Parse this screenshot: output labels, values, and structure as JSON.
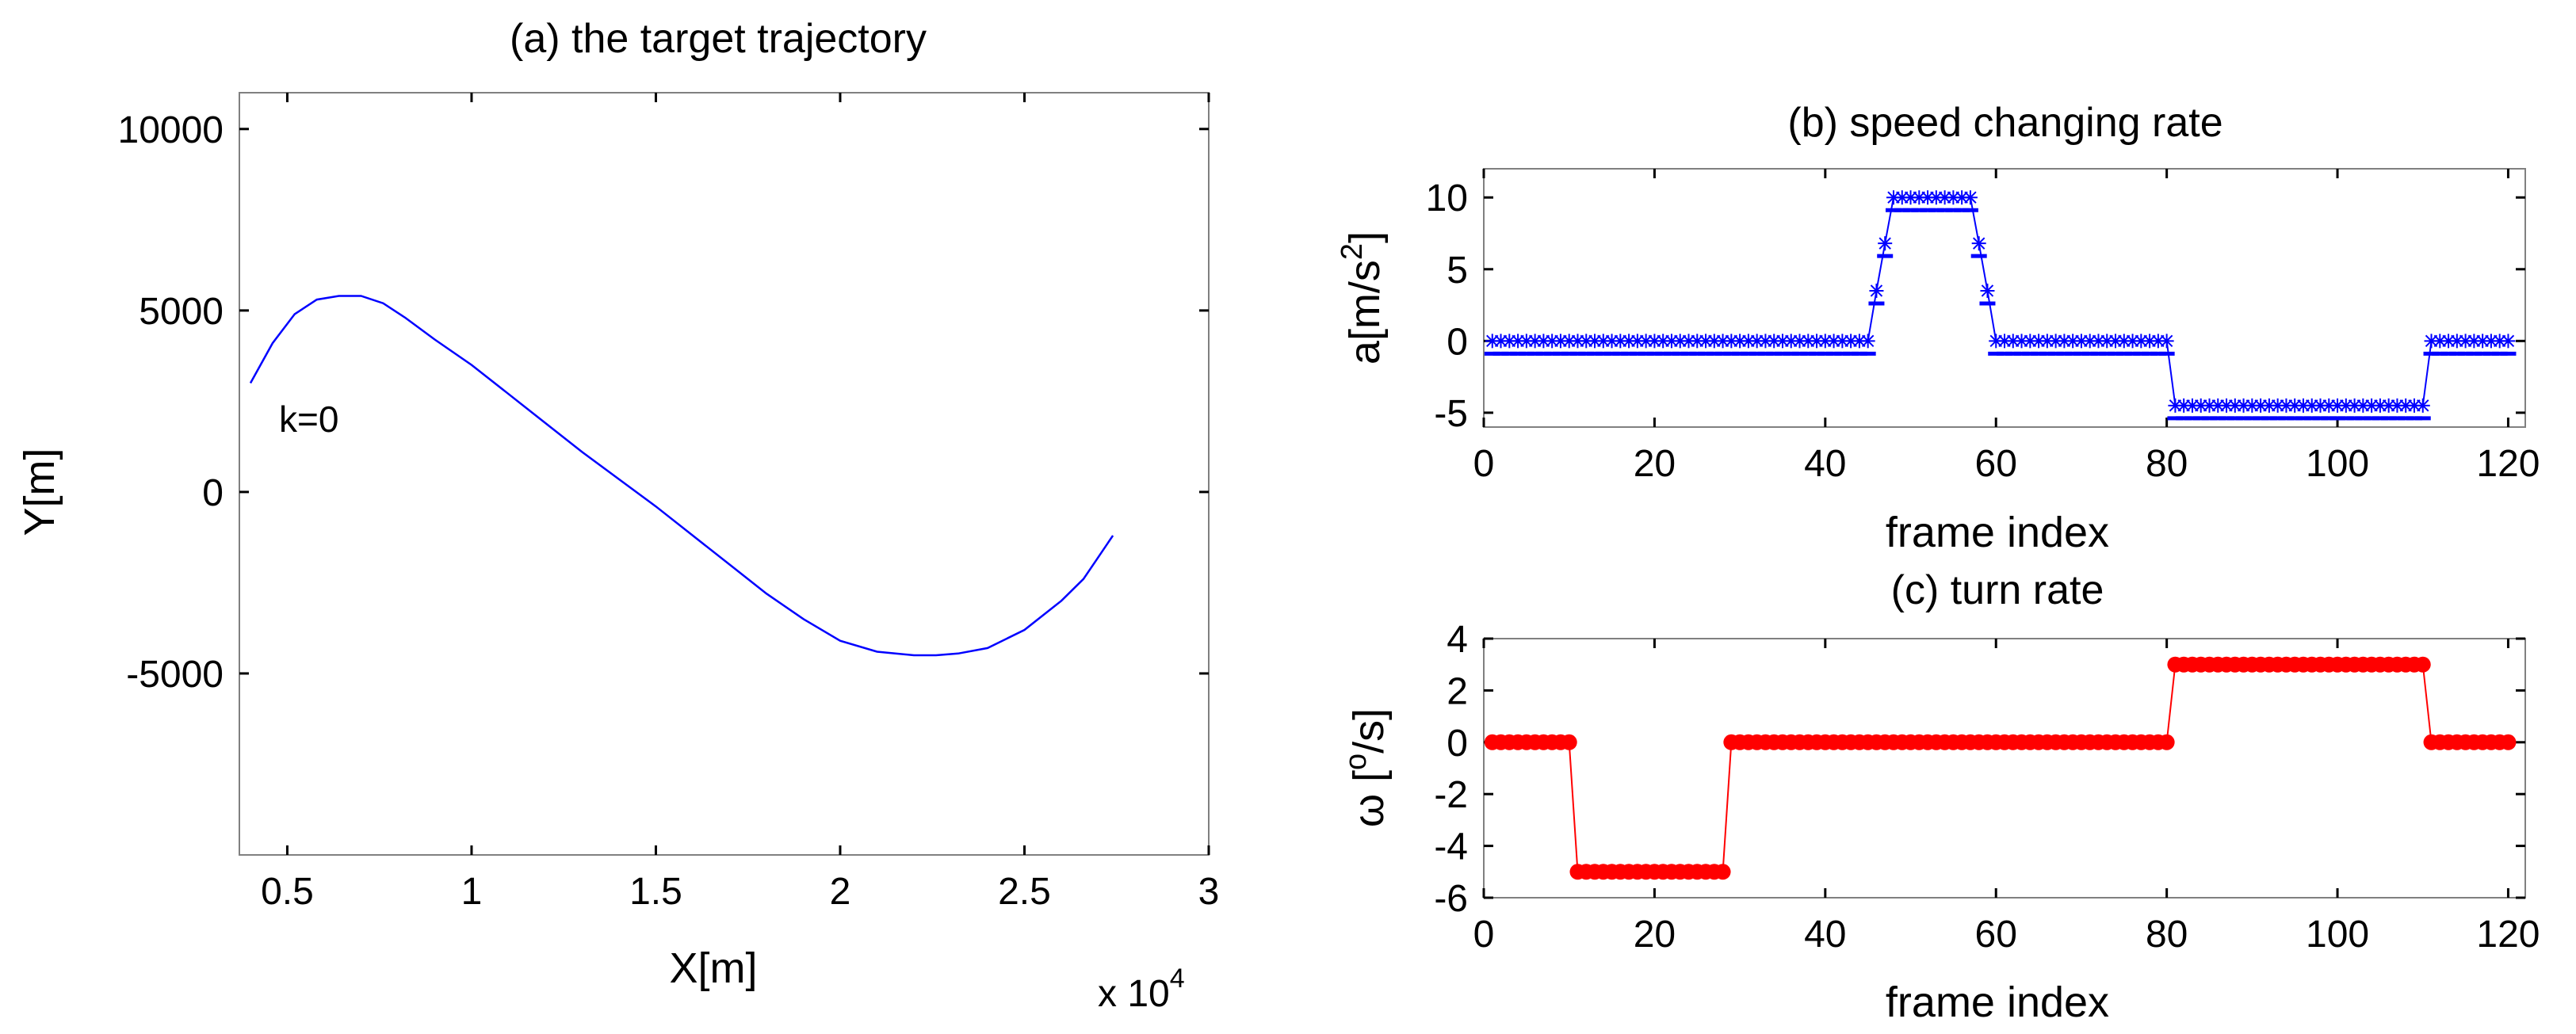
{
  "chart_data": [
    {
      "type": "line",
      "id": "a",
      "title": "(a) the target trajectory",
      "xlabel": "X[m]",
      "ylabel": "Y[m]",
      "xlim": [
        0.37,
        3.0
      ],
      "ylim": [
        -10000,
        11000
      ],
      "xticks": [
        0.5,
        1,
        1.5,
        2,
        2.5,
        3
      ],
      "xtick_labels": [
        "0.5",
        "1",
        "1.5",
        "2",
        "2.5",
        "3"
      ],
      "yticks": [
        10000,
        5000,
        0,
        -5000
      ],
      "ytick_labels": [
        "10000",
        "5000",
        "0",
        "-5000"
      ],
      "x_multiplier_label": "x 10",
      "x_multiplier_exp": "4",
      "annotation": "k=0",
      "color": "#0000ff",
      "series": [
        {
          "name": "trajectory",
          "x": [
            0.4,
            0.46,
            0.52,
            0.58,
            0.64,
            0.7,
            0.76,
            0.82,
            0.9,
            1.0,
            1.1,
            1.2,
            1.3,
            1.4,
            1.5,
            1.6,
            1.7,
            1.8,
            1.9,
            2.0,
            2.1,
            2.2,
            2.26,
            2.32,
            2.4,
            2.5,
            2.6,
            2.66,
            2.7,
            2.74
          ],
          "y": [
            3000,
            4100,
            4900,
            5300,
            5400,
            5400,
            5200,
            4800,
            4200,
            3500,
            2700,
            1900,
            1100,
            350,
            -400,
            -1200,
            -2000,
            -2800,
            -3500,
            -4100,
            -4400,
            -4500,
            -4500,
            -4450,
            -4300,
            -3800,
            -3000,
            -2400,
            -1800,
            -1200
          ]
        }
      ]
    },
    {
      "type": "line",
      "id": "b",
      "title": "(b) speed changing rate",
      "xlabel": "frame index",
      "ylabel": "a[m/s",
      "ylabel_sup": "2",
      "ylabel_end": "]",
      "xlim": [
        0,
        122
      ],
      "ylim": [
        -6,
        12
      ],
      "xticks": [
        0,
        20,
        40,
        60,
        80,
        100,
        120
      ],
      "xtick_labels": [
        "0",
        "20",
        "40",
        "60",
        "80",
        "100",
        "120"
      ],
      "yticks": [
        10,
        5,
        0,
        -5
      ],
      "ytick_labels": [
        "10",
        "5",
        "0",
        "-5"
      ],
      "color": "#0000ff",
      "marker": "star",
      "segments": [
        {
          "from": 1,
          "to": 45,
          "value": 0
        },
        {
          "from": 46,
          "to": 46,
          "value": 3.5
        },
        {
          "from": 47,
          "to": 47,
          "value": 6.8
        },
        {
          "from": 48,
          "to": 57,
          "value": 10
        },
        {
          "from": 58,
          "to": 58,
          "value": 6.8
        },
        {
          "from": 59,
          "to": 59,
          "value": 3.5
        },
        {
          "from": 60,
          "to": 80,
          "value": 0
        },
        {
          "from": 81,
          "to": 110,
          "value": -4.5
        },
        {
          "from": 111,
          "to": 120,
          "value": 0
        }
      ]
    },
    {
      "type": "line",
      "id": "c",
      "title": "(c) turn rate",
      "xlabel": "frame index",
      "ylabel": "ω [",
      "ylabel_sup": "o",
      "ylabel_end": "/s]",
      "xlim": [
        0,
        122
      ],
      "ylim": [
        -6,
        4
      ],
      "xticks": [
        0,
        20,
        40,
        60,
        80,
        100,
        120
      ],
      "xtick_labels": [
        "0",
        "20",
        "40",
        "60",
        "80",
        "100",
        "120"
      ],
      "yticks": [
        4,
        2,
        0,
        -2,
        -4,
        -6
      ],
      "ytick_labels": [
        "4",
        "2",
        "0",
        "-2",
        "-4",
        "-6"
      ],
      "color": "#ff0000",
      "marker": "circle",
      "segments": [
        {
          "from": 1,
          "to": 10,
          "value": 0
        },
        {
          "from": 11,
          "to": 28,
          "value": -5
        },
        {
          "from": 29,
          "to": 80,
          "value": 0
        },
        {
          "from": 81,
          "to": 110,
          "value": 3
        },
        {
          "from": 111,
          "to": 120,
          "value": 0
        }
      ]
    }
  ]
}
